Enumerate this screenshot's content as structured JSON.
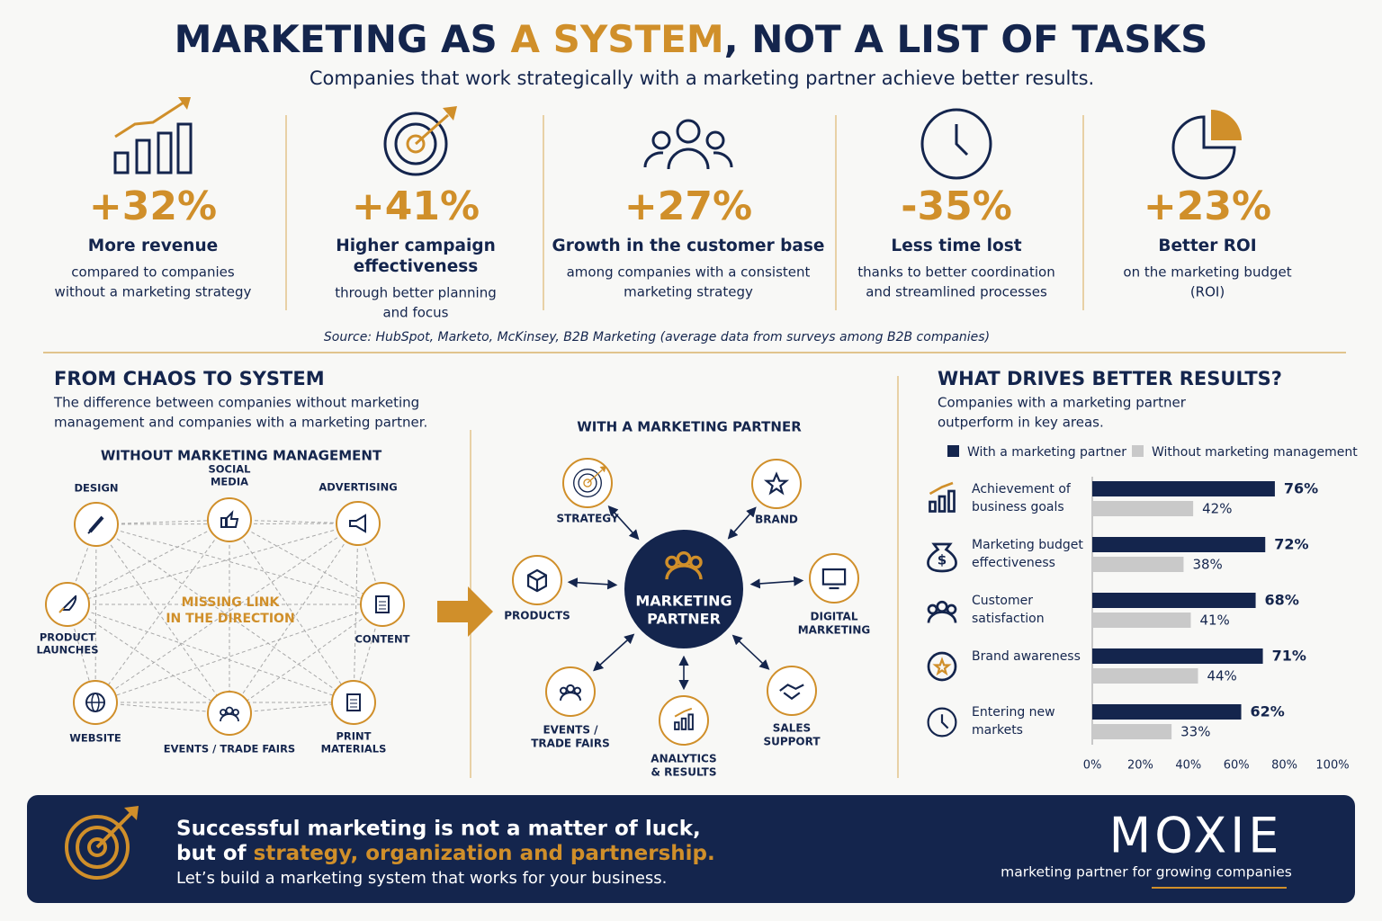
{
  "header": {
    "title": [
      "MARKETING AS ",
      "A SYSTEM",
      ", NOT A LIST OF TASKS"
    ],
    "subtitle": "Companies that work strategically with a marketing partner achieve better results."
  },
  "stats": [
    {
      "value": "+32%",
      "label": [
        "More revenue"
      ],
      "desc": [
        "compared to companies",
        "without a marketing strategy"
      ]
    },
    {
      "value": "+41%",
      "label": [
        "Higher campaign",
        "effectiveness"
      ],
      "desc": [
        "through better planning",
        "and focus"
      ]
    },
    {
      "value": "+27%",
      "label": [
        "Growth in the customer base"
      ],
      "desc": [
        "among companies with a consistent",
        "marketing strategy"
      ]
    },
    {
      "value": "-35%",
      "label": [
        "Less time lost"
      ],
      "desc": [
        "thanks to better coordination",
        "and streamlined processes"
      ]
    },
    {
      "value": "+23%",
      "label": [
        "Better ROI"
      ],
      "desc": [
        "on the marketing budget",
        "(ROI)"
      ]
    }
  ],
  "source": "Source: HubSpot, Marketo, McKinsey, B2B Marketing (average data from surveys among B2B companies)",
  "chaos": {
    "title": "FROM CHAOS TO SYSTEM",
    "desc": [
      "The difference between companies without marketing",
      "management and companies with a marketing partner."
    ],
    "heading": "WITHOUT MARKETING MANAGEMENT",
    "center": [
      "MISSING LINK",
      "IN THE DIRECTION"
    ],
    "nodes": [
      [
        "DESIGN"
      ],
      [
        "SOCIAL",
        "MEDIA"
      ],
      [
        "ADVERTISING"
      ],
      [
        "PRODUCT",
        "LAUNCHES"
      ],
      [
        "CONTENT"
      ],
      [
        "WEBSITE"
      ],
      [
        "EVENTS / TRADE FAIRS"
      ],
      [
        "PRINT",
        "MATERIALS"
      ]
    ]
  },
  "partner": {
    "heading": "WITH A MARKETING PARTNER",
    "center": [
      "MARKETING",
      "PARTNER"
    ],
    "nodes": [
      [
        "STRATEGY"
      ],
      [
        "BRAND"
      ],
      [
        "PRODUCTS"
      ],
      [
        "DIGITAL",
        "MARKETING"
      ],
      [
        "EVENTS /",
        "TRADE FAIRS"
      ],
      [
        "ANALYTICS",
        "& RESULTS"
      ],
      [
        "SALES",
        "SUPPORT"
      ]
    ]
  },
  "chart_data": {
    "type": "bar",
    "orientation": "horizontal",
    "title": "WHAT DRIVES BETTER RESULTS?",
    "subtitle": [
      "Companies with a marketing partner",
      "outperform in key areas."
    ],
    "categories": [
      "Achievement of business goals",
      "Marketing budget effectiveness",
      "Customer satisfaction",
      "Brand awareness",
      "Entering new markets"
    ],
    "series": [
      {
        "name": "With a marketing partner",
        "color": "#14254d",
        "values": [
          76,
          72,
          68,
          71,
          62
        ],
        "value_labels": [
          "76%",
          "72%",
          "68%",
          "71%",
          "62%"
        ]
      },
      {
        "name": "Without marketing management",
        "color": "#c9c9c9",
        "values": [
          42,
          38,
          41,
          44,
          33
        ],
        "value_labels": [
          "42%",
          "38%",
          "41%",
          "44%",
          "33%"
        ]
      }
    ],
    "xlim": [
      0,
      100
    ],
    "xticks": [
      {
        "value": 0,
        "label": "0%"
      },
      {
        "value": 20,
        "label": "20%"
      },
      {
        "value": 40,
        "label": "40%"
      },
      {
        "value": 60,
        "label": "60%"
      },
      {
        "value": 80,
        "label": "80%"
      },
      {
        "value": 100,
        "label": "100%"
      }
    ],
    "legend": "top"
  },
  "footer": {
    "line1": "Successful marketing is not a matter of luck,",
    "line2": [
      "but of ",
      "strategy, organization and partnership."
    ],
    "line3": "Let’s build a marketing system that works for your business.",
    "brand": "MOXIE",
    "tagline": "marketing partner for growing companies"
  }
}
